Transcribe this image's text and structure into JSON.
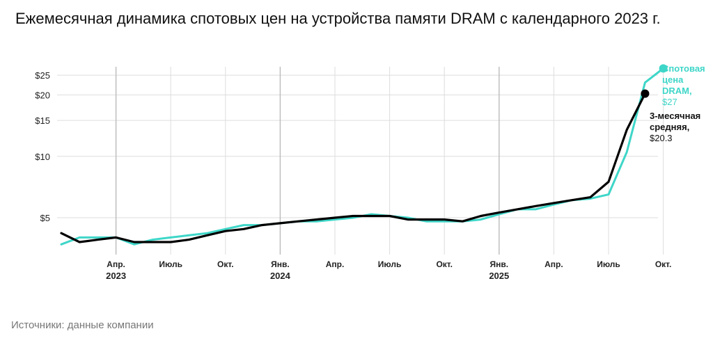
{
  "title": "Ежемесячная динамика спотовых цен на устройства памяти DRAM с календарного 2023 г.",
  "source": "Источники: данные компании",
  "colors": {
    "spot": "#3ED6C8",
    "avg": "#000000",
    "grid": "#DDDDDD"
  },
  "chart_data": {
    "type": "line",
    "title": "Ежемесячная динамика спотовых цен на устройства памяти DRAM с календарного 2023 г.",
    "ylabel": "",
    "y_scale": "log",
    "ylim": [
      3.35,
      27.5
    ],
    "yticks": [
      {
        "value": 5,
        "label": "$5"
      },
      {
        "value": 10,
        "label": "$10"
      },
      {
        "value": 15,
        "label": "$15"
      },
      {
        "value": 20,
        "label": "$20"
      },
      {
        "value": 25,
        "label": "$25"
      }
    ],
    "xticks": [
      {
        "month": 3,
        "line1": "Апр.",
        "line2": "2023"
      },
      {
        "month": 6,
        "line1": "Июль",
        "line2": ""
      },
      {
        "month": 9,
        "line1": "Окт.",
        "line2": ""
      },
      {
        "month": 12,
        "line1": "Янв.",
        "line2": "2024"
      },
      {
        "month": 15,
        "line1": "Апр.",
        "line2": ""
      },
      {
        "month": 18,
        "line1": "Июль",
        "line2": ""
      },
      {
        "month": 21,
        "line1": "Окт.",
        "line2": ""
      },
      {
        "month": 24,
        "line1": "Янв.",
        "line2": "2025"
      },
      {
        "month": 27,
        "line1": "Апр.",
        "line2": ""
      },
      {
        "month": 30,
        "line1": "Июль",
        "line2": ""
      },
      {
        "month": 33,
        "line1": "Окт.",
        "line2": ""
      }
    ],
    "x": [
      "2023-01",
      "2023-02",
      "2023-03",
      "2023-04",
      "2023-05",
      "2023-06",
      "2023-07",
      "2023-08",
      "2023-09",
      "2023-10",
      "2023-11",
      "2023-12",
      "2024-01",
      "2024-02",
      "2024-03",
      "2024-04",
      "2024-05",
      "2024-06",
      "2024-07",
      "2024-08",
      "2024-09",
      "2024-10",
      "2024-11",
      "2024-12",
      "2025-01",
      "2025-02",
      "2025-03",
      "2025-04",
      "2025-05",
      "2025-06",
      "2025-07",
      "2025-08",
      "2025-09",
      "2025-10",
      "2025-11"
    ],
    "series": [
      {
        "name": "Спотовая цена DRAM,",
        "value_label": "$27",
        "key": "spot",
        "values": [
          3.7,
          4.0,
          4.0,
          4.0,
          3.7,
          3.9,
          4.0,
          4.1,
          4.2,
          4.4,
          4.6,
          4.6,
          4.7,
          4.8,
          4.8,
          4.9,
          5.0,
          5.2,
          5.1,
          5.0,
          4.8,
          4.8,
          4.8,
          4.9,
          5.2,
          5.5,
          5.5,
          5.8,
          6.1,
          6.2,
          6.5,
          10.5,
          23.0,
          27.0,
          null
        ]
      },
      {
        "name": "3-месячная средняя,",
        "value_label": "$20.3",
        "key": "avg",
        "values": [
          4.2,
          3.8,
          3.9,
          4.0,
          3.8,
          3.8,
          3.8,
          3.9,
          4.1,
          4.3,
          4.4,
          4.6,
          4.7,
          4.8,
          4.9,
          5.0,
          5.1,
          5.1,
          5.1,
          4.9,
          4.9,
          4.9,
          4.8,
          5.1,
          5.3,
          5.5,
          5.7,
          5.9,
          6.1,
          6.3,
          7.5,
          13.5,
          20.3,
          null,
          null
        ]
      }
    ],
    "grid": true,
    "legend": "direct labels at line ends"
  }
}
